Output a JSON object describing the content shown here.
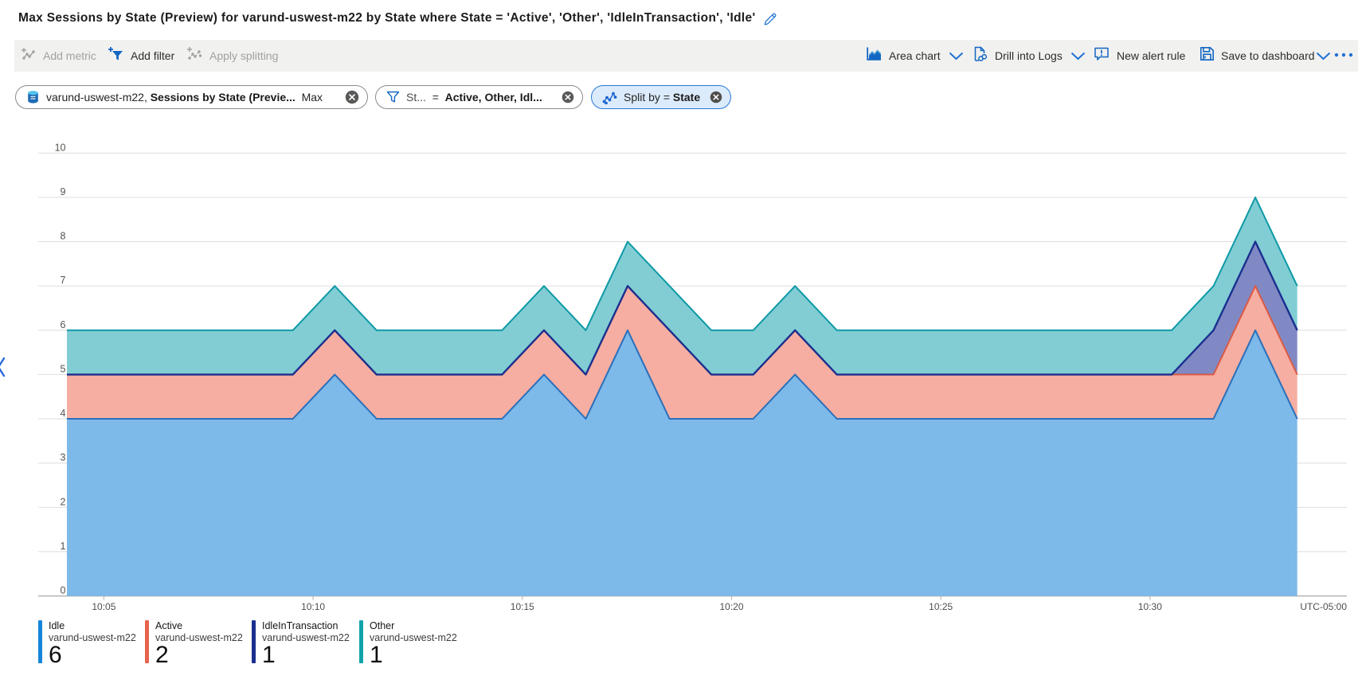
{
  "title": "Max Sessions by State (Preview) for varund-uswest-m22 by State where State = 'Active', 'Other', 'IdleInTransaction', 'Idle'",
  "toolbar": {
    "add_metric": "Add metric",
    "add_filter": "Add filter",
    "apply_splitting": "Apply splitting",
    "chart_type": "Area chart",
    "drill_into_logs": "Drill into Logs",
    "new_alert_rule": "New alert rule",
    "save_to_dashboard": "Save to dashboard",
    "more": "..."
  },
  "pills": {
    "metric": {
      "resource": "varund-uswest-m22,",
      "metric_name": "Sessions by State (Previe...",
      "aggregation": "Max"
    },
    "filter": {
      "prefix": "St...",
      "eq": "=",
      "value": "Active, Other, Idl..."
    },
    "split": {
      "prefix": "Split by",
      "eq": "=",
      "value": "State"
    }
  },
  "colors": {
    "accent": "#0f6cbd",
    "toolbar_bg": "#f1f1f0",
    "disabled": "#a3a1a0",
    "pill_selected_bg": "#dcebfb",
    "pill_selected_border": "#2779d6",
    "x_circle": "#5b5957",
    "grid": "#e3e2e0",
    "axis": "#b3b1af"
  },
  "chart_data": {
    "type": "area",
    "stacked": true,
    "title": "Max Sessions by State (Preview)",
    "y_ticks": [
      0,
      1,
      2,
      3,
      4,
      5,
      6,
      7,
      8,
      9,
      10
    ],
    "ylim": [
      0,
      10
    ],
    "x_ticks": [
      "10:05",
      "10:10",
      "10:15",
      "10:20",
      "10:25",
      "10:30"
    ],
    "timezone_label": "UTC-05:00",
    "grid": true,
    "legend_position": "bottom",
    "minutes_per_point": 1,
    "series": [
      {
        "name": "Idle",
        "resource": "varund-uswest-m22",
        "legend_value": "6",
        "color": "#1586d8",
        "stroke": "#2a6fbb",
        "fill": "#7db9e9",
        "values": [
          4,
          4,
          4,
          4,
          4,
          4,
          5,
          4,
          4,
          4,
          4,
          5,
          4,
          6,
          4,
          4,
          4,
          5,
          4,
          4,
          4,
          4,
          4,
          4,
          4,
          4,
          4,
          4,
          6,
          4
        ]
      },
      {
        "name": "Active",
        "resource": "varund-uswest-m22",
        "legend_value": "2",
        "color": "#e8634d",
        "stroke": "#dc5a45",
        "fill": "#f5aea1",
        "values": [
          1,
          1,
          1,
          1,
          1,
          1,
          1,
          1,
          1,
          1,
          1,
          1,
          1,
          1,
          2,
          1,
          1,
          1,
          1,
          1,
          1,
          1,
          1,
          1,
          1,
          1,
          1,
          1,
          1,
          1
        ]
      },
      {
        "name": "IdleInTransaction",
        "resource": "varund-uswest-m22",
        "legend_value": "1",
        "color": "#1b2f8f",
        "stroke": "#1b2f8f",
        "fill": "#8089c3",
        "values": [
          0,
          0,
          0,
          0,
          0,
          0,
          0,
          0,
          0,
          0,
          0,
          0,
          0,
          0,
          0,
          0,
          0,
          0,
          0,
          0,
          0,
          0,
          0,
          0,
          0,
          0,
          0,
          1,
          1,
          1
        ]
      },
      {
        "name": "Other",
        "resource": "varund-uswest-m22",
        "legend_value": "1",
        "color": "#11a3ab",
        "stroke": "#0d99a6",
        "fill": "#81cdd3",
        "values": [
          1,
          1,
          1,
          1,
          1,
          1,
          1,
          1,
          1,
          1,
          1,
          1,
          1,
          1,
          1,
          1,
          1,
          1,
          1,
          1,
          1,
          1,
          1,
          1,
          1,
          1,
          1,
          1,
          1,
          1
        ]
      }
    ]
  }
}
